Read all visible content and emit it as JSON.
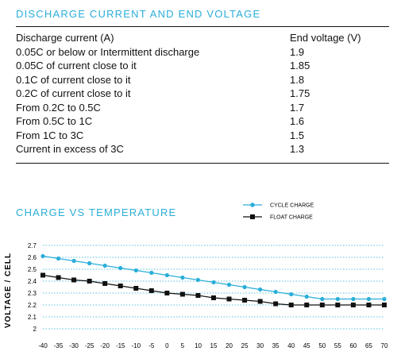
{
  "discharge": {
    "title": "DISCHARGE CURRENT AND END VOLTAGE",
    "headers": [
      "Discharge current (A)",
      "End voltage (V)"
    ],
    "rows": [
      [
        "0.05C or below or Intermittent discharge",
        "1.9"
      ],
      [
        "0.05C of current close to it",
        "1.85"
      ],
      [
        "0.1C of current close to it",
        "1.8"
      ],
      [
        "0.2C of current close to it",
        "1.75"
      ],
      [
        "From 0.2C to 0.5C",
        "1.7"
      ],
      [
        "From 0.5C to 1C",
        "1.6"
      ],
      [
        "From 1C to 3C",
        "1.5"
      ],
      [
        "Current in excess of 3C",
        "1.3"
      ]
    ]
  },
  "chart_data": {
    "type": "line",
    "title": "CHARGE vs TEMPERATURE",
    "xlabel": "",
    "ylabel": "VOLTAGE / CELL",
    "x": [
      -40,
      -35,
      -30,
      -25,
      -20,
      -15,
      -10,
      -5,
      0,
      5,
      10,
      15,
      20,
      25,
      30,
      35,
      40,
      45,
      50,
      55,
      60,
      65,
      70
    ],
    "x_tick_labels": [
      "-40",
      "-35",
      "-30",
      "-25",
      "-20",
      "-15",
      "-10",
      "-5",
      "0",
      "5",
      "10",
      "15",
      "20",
      "25",
      "30",
      "35",
      "40",
      "45",
      "50",
      "55",
      "60",
      "65",
      "70"
    ],
    "y_ticks": [
      2,
      2.1,
      2.2,
      2.3,
      2.4,
      2.5,
      2.6,
      2.7
    ],
    "y_tick_labels": [
      "2",
      "2.1",
      "2.2",
      "2.3",
      "2.4",
      "2.5",
      "2.6",
      "2.7"
    ],
    "ylim": [
      2,
      2.7
    ],
    "xlim": [
      -40,
      70
    ],
    "grid": "horizontal dotted",
    "legend_position": "top-right",
    "series": [
      {
        "name": "CYCLE CHARGE",
        "color": "#2aaed9",
        "marker": "circle",
        "values": [
          2.61,
          2.59,
          2.57,
          2.55,
          2.53,
          2.51,
          2.49,
          2.47,
          2.45,
          2.43,
          2.41,
          2.39,
          2.37,
          2.35,
          2.33,
          2.31,
          2.29,
          2.27,
          2.25,
          2.25,
          2.25,
          2.25,
          2.25
        ]
      },
      {
        "name": "FLOAT CHARGE",
        "color": "#111111",
        "marker": "square",
        "values": [
          2.45,
          2.43,
          2.41,
          2.4,
          2.38,
          2.36,
          2.34,
          2.32,
          2.3,
          2.29,
          2.28,
          2.26,
          2.25,
          2.24,
          2.23,
          2.21,
          2.2,
          2.2,
          2.2,
          2.2,
          2.2,
          2.2,
          2.2
        ]
      }
    ]
  }
}
